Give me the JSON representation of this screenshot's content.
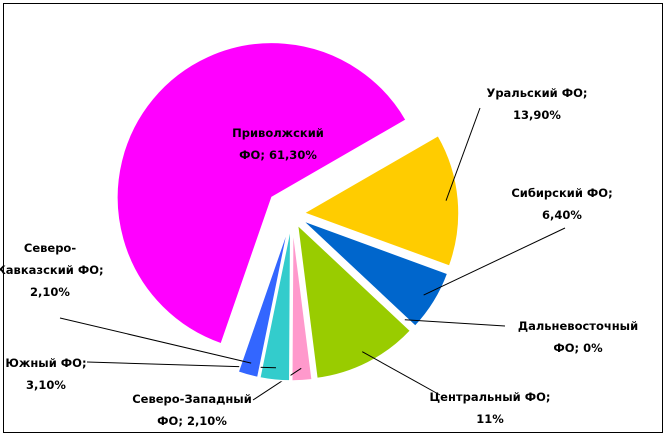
{
  "chart_data": {
    "type": "pie",
    "values": [
      13.9,
      6.4,
      0,
      11,
      2.1,
      3.1,
      2.1,
      61.3
    ],
    "value_labels": [
      [
        "Уральский ФО;",
        "13,90%"
      ],
      [
        "Сибирский ФО;",
        "6,40%"
      ],
      [
        "Дальневосточный",
        "ФО; 0%"
      ],
      [
        "Центральный ФО;",
        "11%"
      ],
      [
        "Северо-Западный",
        "ФО; 2,10%"
      ],
      [
        "Южный ФО;",
        "3,10%"
      ],
      [
        "Северо-",
        "Кавказский ФО;",
        "2,10%"
      ],
      [
        "Приволжский",
        "ФО; 61,30%"
      ]
    ],
    "colors": [
      "#ffcc00",
      "#0066cc",
      "#0066cc",
      "#99cc00",
      "#ff99cc",
      "#33cccc",
      "#3366ff",
      "#ff00ff"
    ]
  }
}
